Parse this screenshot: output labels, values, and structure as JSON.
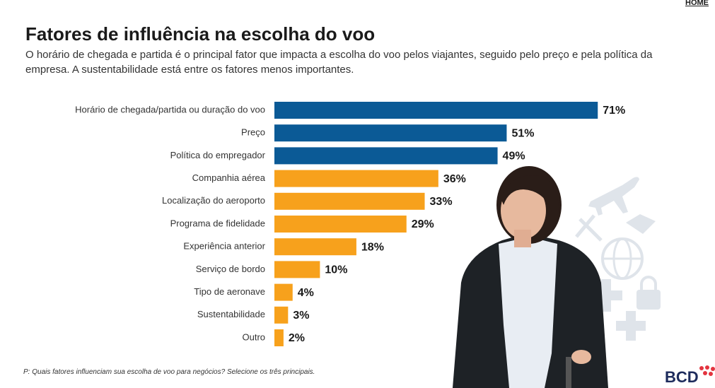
{
  "home": "HOME",
  "logo": "BCD",
  "chart_data": {
    "type": "bar",
    "orientation": "horizontal",
    "title": "Fatores de influência na escolha do voo",
    "subtitle": "O horário de chegada e partida é o principal fator que impacta a escolha do voo pelos viajantes, seguido pelo preço e pela política da empresa. A sustentabilidade está entre os fatores menos importantes.",
    "footnote": "P: Quais fatores influenciam sua escolha de voo para negócios? Selecione os três principais.",
    "categories": [
      "Horário de chegada/partida ou duração do voo",
      "Preço",
      "Política do empregador",
      "Companhia aérea",
      "Localização do aeroporto",
      "Programa de fidelidade",
      "Experiência anterior",
      "Serviço de bordo",
      "Tipo de aeronave",
      "Sustentabilidade",
      "Outro"
    ],
    "values": [
      71,
      51,
      49,
      36,
      33,
      29,
      18,
      10,
      4,
      3,
      2
    ],
    "value_labels": [
      "71%",
      "51%",
      "49%",
      "36%",
      "33%",
      "29%",
      "18%",
      "10%",
      "4%",
      "3%",
      "2%"
    ],
    "colors": [
      "#0b5a96",
      "#0b5a96",
      "#0b5a96",
      "#f7a11c",
      "#f7a11c",
      "#f7a11c",
      "#f7a11c",
      "#f7a11c",
      "#f7a11c",
      "#f7a11c",
      "#f7a11c"
    ]
  }
}
